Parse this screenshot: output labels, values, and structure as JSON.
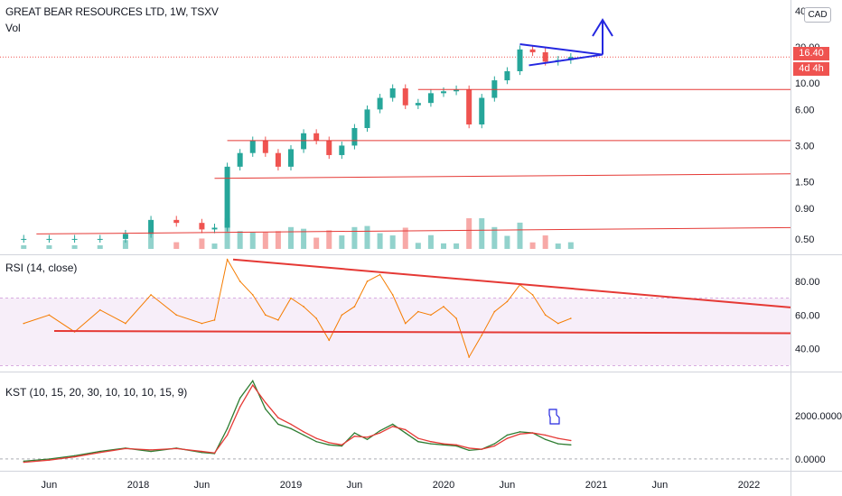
{
  "header": {
    "title": "GREAT BEAR RESOURCES LTD, 1W, TSXV",
    "volume_label": "Vol",
    "currency": "CAD",
    "last_price": "16.40",
    "countdown": "4d 4h",
    "price_tag_color": "#ef5350"
  },
  "chart_data": [
    {
      "type": "candlestick",
      "pane": "price",
      "scale": "log",
      "y_ticks": [
        "40.00",
        "20.00",
        "10.00",
        "6.00",
        "3.00",
        "1.50",
        "0.90",
        "0.50"
      ],
      "y_tick_values": [
        40,
        20,
        10,
        6,
        3,
        1.5,
        0.9,
        0.5
      ],
      "series": [
        {
          "name": "close",
          "x": [
            "2017-04",
            "2017-06",
            "2017-08",
            "2017-10",
            "2017-12",
            "2018-02",
            "2018-04",
            "2018-06",
            "2018-07",
            "2018-08",
            "2018-09",
            "2018-10",
            "2018-11",
            "2018-12",
            "2019-01",
            "2019-02",
            "2019-03",
            "2019-04",
            "2019-05",
            "2019-06",
            "2019-07",
            "2019-08",
            "2019-09",
            "2019-10",
            "2019-11",
            "2019-12",
            "2020-01",
            "2020-02",
            "2020-03",
            "2020-04",
            "2020-05",
            "2020-06",
            "2020-07",
            "2020-08",
            "2020-09",
            "2020-10",
            "2020-11"
          ],
          "values": [
            0.5,
            0.5,
            0.5,
            0.5,
            0.55,
            0.72,
            0.68,
            0.6,
            0.62,
            2.0,
            2.6,
            3.3,
            2.6,
            2.0,
            2.8,
            3.8,
            3.3,
            2.5,
            3.0,
            4.2,
            6.0,
            7.5,
            9.0,
            6.5,
            6.8,
            8.2,
            8.5,
            8.8,
            4.5,
            7.5,
            10.5,
            12.5,
            19.0,
            18.0,
            15.0,
            15.5,
            16.4
          ]
        }
      ],
      "annotations": {
        "horizontal_levels": [
          8.8,
          3.3,
          1.6,
          0.55
        ],
        "triangle_color": "#2427e0",
        "level_color": "#e53935"
      }
    },
    {
      "type": "line",
      "pane": "RSI",
      "title": "RSI (14, close)",
      "y_ticks": [
        "80.00",
        "60.00",
        "40.00"
      ],
      "y_tick_values": [
        80,
        60,
        40
      ],
      "band": [
        30,
        70
      ],
      "series": [
        {
          "name": "RSI",
          "x": [
            "2017-04",
            "2017-06",
            "2017-08",
            "2017-10",
            "2017-12",
            "2018-02",
            "2018-04",
            "2018-06",
            "2018-07",
            "2018-08",
            "2018-09",
            "2018-10",
            "2018-11",
            "2018-12",
            "2019-01",
            "2019-02",
            "2019-03",
            "2019-04",
            "2019-05",
            "2019-06",
            "2019-07",
            "2019-08",
            "2019-09",
            "2019-10",
            "2019-11",
            "2019-12",
            "2020-01",
            "2020-02",
            "2020-03",
            "2020-04",
            "2020-05",
            "2020-06",
            "2020-07",
            "2020-08",
            "2020-09",
            "2020-10",
            "2020-11"
          ],
          "values": [
            55,
            60,
            50,
            63,
            55,
            72,
            60,
            55,
            57,
            93,
            80,
            72,
            60,
            57,
            70,
            65,
            58,
            45,
            60,
            65,
            80,
            84,
            72,
            55,
            62,
            60,
            65,
            58,
            35,
            48,
            62,
            68,
            78,
            72,
            60,
            55,
            58
          ]
        }
      ],
      "trendlines_color": "#e53935"
    },
    {
      "type": "line",
      "pane": "KST",
      "title": "KST (10, 15, 20, 30, 10, 10, 10, 15, 9)",
      "y_ticks": [
        "2000.0000",
        "0.0000"
      ],
      "y_tick_values": [
        2000,
        0
      ],
      "series": [
        {
          "name": "KST",
          "color": "#2e7d32",
          "x": [
            "2017-04",
            "2017-06",
            "2017-08",
            "2017-10",
            "2017-12",
            "2018-02",
            "2018-04",
            "2018-06",
            "2018-07",
            "2018-08",
            "2018-09",
            "2018-10",
            "2018-11",
            "2018-12",
            "2019-01",
            "2019-02",
            "2019-03",
            "2019-04",
            "2019-05",
            "2019-06",
            "2019-07",
            "2019-08",
            "2019-09",
            "2019-10",
            "2019-11",
            "2019-12",
            "2020-01",
            "2020-02",
            "2020-03",
            "2020-04",
            "2020-05",
            "2020-06",
            "2020-07",
            "2020-08",
            "2020-09",
            "2020-10",
            "2020-11"
          ],
          "values": [
            -100,
            0,
            150,
            350,
            500,
            350,
            500,
            300,
            250,
            1400,
            2800,
            3600,
            2300,
            1600,
            1400,
            1100,
            800,
            650,
            600,
            1200,
            900,
            1300,
            1600,
            1200,
            800,
            700,
            650,
            600,
            400,
            450,
            700,
            1100,
            1250,
            1200,
            900,
            700,
            650
          ]
        },
        {
          "name": "Signal",
          "color": "#e53935",
          "x": [
            "2017-04",
            "2017-06",
            "2017-08",
            "2017-10",
            "2017-12",
            "2018-02",
            "2018-04",
            "2018-06",
            "2018-07",
            "2018-08",
            "2018-09",
            "2018-10",
            "2018-11",
            "2018-12",
            "2019-01",
            "2019-02",
            "2019-03",
            "2019-04",
            "2019-05",
            "2019-06",
            "2019-07",
            "2019-08",
            "2019-09",
            "2019-10",
            "2019-11",
            "2019-12",
            "2020-01",
            "2020-02",
            "2020-03",
            "2020-04",
            "2020-05",
            "2020-06",
            "2020-07",
            "2020-08",
            "2020-09",
            "2020-10",
            "2020-11"
          ],
          "values": [
            -150,
            -50,
            100,
            300,
            480,
            420,
            480,
            350,
            280,
            1100,
            2400,
            3400,
            2600,
            1900,
            1600,
            1250,
            950,
            750,
            650,
            1050,
            1000,
            1200,
            1500,
            1350,
            950,
            800,
            700,
            650,
            500,
            450,
            600,
            950,
            1150,
            1200,
            1100,
            950,
            850
          ]
        }
      ]
    }
  ],
  "x_axis": {
    "ticks": [
      "Jun",
      "2018",
      "Jun",
      "2019",
      "Jun",
      "2020",
      "Jun",
      "2021",
      "Jun",
      "2022"
    ]
  }
}
